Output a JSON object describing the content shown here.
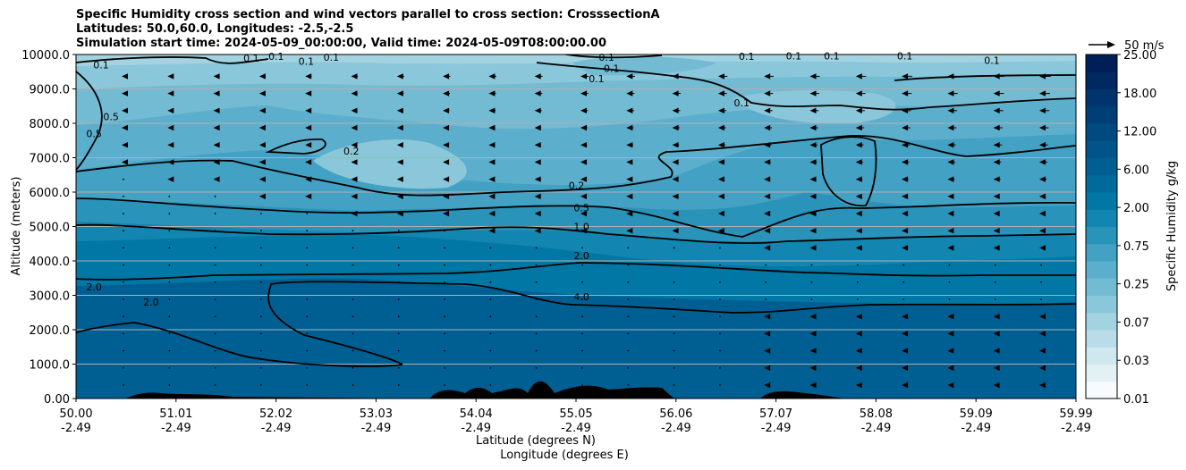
{
  "chart_data": {
    "type": "heatmap",
    "title_lines": [
      "Specific Humidity cross section and wind vectors parallel to cross section: CrosssectionA",
      "Latitudes: 50.0,60.0, Longitudes: -2.5,-2.5",
      "Simulation start time: 2024-05-09_00:00:00, Valid time: 2024-05-09T08:00:00.00"
    ],
    "ylabel": "Altitude (meters)",
    "xlabel_lines": [
      "Latitude (degrees N)",
      "Longitude (degrees E)"
    ],
    "y_ticks": [
      "0.00",
      "1000.0",
      "2000.0",
      "3000.0",
      "4000.0",
      "5000.0",
      "6000.0",
      "7000.0",
      "8000.0",
      "9000.0",
      "10000.0"
    ],
    "ylim": [
      0,
      10000
    ],
    "x_ticks": [
      {
        "lat": "50.00",
        "lon": "-2.49"
      },
      {
        "lat": "51.01",
        "lon": "-2.49"
      },
      {
        "lat": "52.02",
        "lon": "-2.49"
      },
      {
        "lat": "53.03",
        "lon": "-2.49"
      },
      {
        "lat": "54.04",
        "lon": "-2.49"
      },
      {
        "lat": "55.05",
        "lon": "-2.49"
      },
      {
        "lat": "56.06",
        "lon": "-2.49"
      },
      {
        "lat": "57.07",
        "lon": "-2.49"
      },
      {
        "lat": "58.08",
        "lon": "-2.49"
      },
      {
        "lat": "59.09",
        "lon": "-2.49"
      },
      {
        "lat": "59.99",
        "lon": "-2.49"
      }
    ],
    "xlim": [
      50.0,
      59.99
    ],
    "colorbar": {
      "label": "Specific Humidity g/kg",
      "levels": [
        "0.01",
        "0.03",
        "0.07",
        "0.25",
        "0.75",
        "2.00",
        "6.00",
        "12.00",
        "18.00",
        "25.00"
      ],
      "colors": [
        "#f7fbfd",
        "#e3f1f4",
        "#cfe7ee",
        "#b8dde8",
        "#a3d3e1",
        "#8ac7da",
        "#72bbd3",
        "#5cafcc",
        "#43a1c3",
        "#2a93ba",
        "#1285b0",
        "#0077a4",
        "#006a9b",
        "#005f92",
        "#00548a",
        "#004a80",
        "#003f76",
        "#00346c",
        "#002962",
        "#001f58"
      ]
    },
    "quiver_key": "50 m/s",
    "contours": [
      {
        "label": "0.1",
        "lat": 55.35,
        "alt": 9600
      },
      {
        "label": "0.1",
        "lat": 55.3,
        "alt": 9920
      },
      {
        "label": "0.1",
        "lat": 55.2,
        "alt": 9300
      },
      {
        "label": "0.1",
        "lat": 56.65,
        "alt": 8600
      },
      {
        "label": "0.1",
        "lat": 50.25,
        "alt": 9700
      },
      {
        "label": "0.1",
        "lat": 51.75,
        "alt": 9900
      },
      {
        "label": "0.1",
        "lat": 52.0,
        "alt": 9950
      },
      {
        "label": "0.1",
        "lat": 52.3,
        "alt": 9800
      },
      {
        "label": "0.1",
        "lat": 52.55,
        "alt": 9920
      },
      {
        "label": "0.1",
        "lat": 56.7,
        "alt": 9950
      },
      {
        "label": "0.1",
        "lat": 57.17,
        "alt": 9960
      },
      {
        "label": "0.1",
        "lat": 57.55,
        "alt": 9960
      },
      {
        "label": "0.1",
        "lat": 58.28,
        "alt": 9960
      },
      {
        "label": "0.1",
        "lat": 59.15,
        "alt": 9830
      },
      {
        "label": "0.5",
        "lat": 50.35,
        "alt": 8200
      },
      {
        "label": "0.5",
        "lat": 50.18,
        "alt": 7700
      },
      {
        "label": "0.2",
        "lat": 52.75,
        "alt": 7200
      },
      {
        "label": "0.2",
        "lat": 55.0,
        "alt": 6200
      },
      {
        "label": "0.5",
        "lat": 55.05,
        "alt": 5550
      },
      {
        "label": "1.0",
        "lat": 55.05,
        "alt": 5000
      },
      {
        "label": "2.0",
        "lat": 55.05,
        "alt": 4150
      },
      {
        "label": "4.0",
        "lat": 55.05,
        "alt": 2960
      },
      {
        "label": "2.0",
        "lat": 50.18,
        "alt": 3250
      },
      {
        "label": "2.0",
        "lat": 50.75,
        "alt": 2800
      }
    ]
  }
}
